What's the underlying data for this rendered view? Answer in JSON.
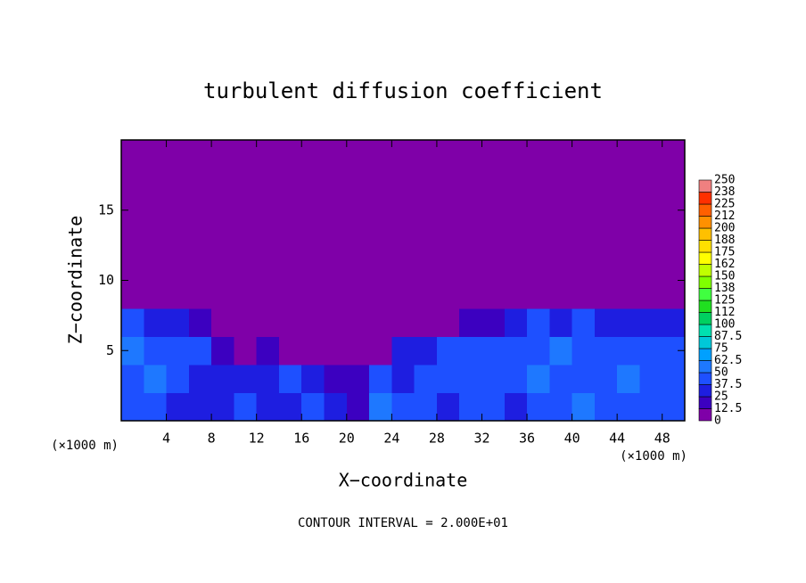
{
  "chart_data": {
    "type": "heatmap",
    "title": "turbulent diffusion coefficient",
    "xlabel": "X−coordinate",
    "ylabel": "Z−coordinate",
    "x_unit": "(×1000 m)",
    "y_unit": "(×1000 m)",
    "footer": "CONTOUR INTERVAL = 2.000E+01",
    "xlim": [
      0,
      50
    ],
    "ylim": [
      0,
      20
    ],
    "xticks": [
      4,
      8,
      12,
      16,
      20,
      24,
      28,
      32,
      36,
      40,
      44,
      48
    ],
    "yticks": [
      5,
      10,
      15
    ],
    "z": [
      [
        40,
        45,
        35,
        30,
        25,
        40,
        30,
        35,
        45,
        30,
        20,
        60,
        45,
        40,
        35,
        40,
        45,
        35,
        40,
        45,
        50,
        40,
        45,
        40,
        45
      ],
      [
        45,
        50,
        40,
        35,
        30,
        30,
        35,
        40,
        30,
        20,
        15,
        40,
        35,
        45,
        40,
        45,
        40,
        45,
        50,
        45,
        40,
        45,
        50,
        45,
        40
      ],
      [
        50,
        45,
        40,
        40,
        20,
        10,
        15,
        10,
        5,
        0,
        0,
        10,
        30,
        35,
        40,
        40,
        45,
        40,
        45,
        50,
        45,
        40,
        45,
        40,
        45
      ],
      [
        40,
        35,
        30,
        20,
        5,
        0,
        0,
        0,
        0,
        0,
        0,
        0,
        0,
        5,
        10,
        15,
        20,
        30,
        40,
        35,
        40,
        35,
        30,
        35,
        30
      ],
      [
        0,
        0,
        0,
        0,
        0,
        0,
        0,
        0,
        0,
        0,
        0,
        0,
        0,
        0,
        0,
        0,
        0,
        0,
        0,
        0,
        0,
        0,
        0,
        0,
        0
      ],
      [
        0,
        0,
        0,
        0,
        0,
        0,
        0,
        0,
        0,
        0,
        0,
        0,
        0,
        0,
        0,
        0,
        0,
        0,
        0,
        0,
        0,
        0,
        0,
        0,
        0
      ],
      [
        0,
        0,
        0,
        0,
        0,
        0,
        0,
        0,
        0,
        0,
        0,
        0,
        0,
        0,
        0,
        0,
        0,
        0,
        0,
        0,
        0,
        0,
        0,
        0,
        0
      ],
      [
        0,
        0,
        0,
        0,
        0,
        0,
        0,
        0,
        0,
        0,
        0,
        0,
        0,
        0,
        0,
        0,
        0,
        0,
        0,
        0,
        0,
        0,
        0,
        0,
        0
      ],
      [
        0,
        0,
        0,
        0,
        0,
        0,
        0,
        0,
        0,
        0,
        0,
        0,
        0,
        0,
        0,
        0,
        0,
        0,
        0,
        0,
        0,
        0,
        0,
        0,
        0
      ],
      [
        0,
        0,
        0,
        0,
        0,
        0,
        0,
        0,
        0,
        0,
        0,
        0,
        0,
        0,
        0,
        0,
        0,
        0,
        0,
        0,
        0,
        0,
        0,
        0,
        0
      ]
    ],
    "colorbar": {
      "levels": [
        0,
        12.5,
        25,
        37.5,
        50,
        62.5,
        75,
        87.5,
        100,
        {
          "value": 112.5,
          "label": "112"
        },
        125,
        {
          "value": 137.5,
          "label": "138"
        },
        150,
        {
          "value": 162.5,
          "label": "162"
        },
        175,
        {
          "value": 187.5,
          "label": "188"
        },
        200,
        {
          "value": 212.5,
          "label": "212"
        },
        225,
        {
          "value": 237.5,
          "label": "238"
        },
        250
      ],
      "colors": [
        "#7f00a8",
        "#3c00c0",
        "#1e1ee0",
        "#1e50ff",
        "#1e78ff",
        "#00a0ff",
        "#00c8d8",
        "#00e0b0",
        "#00d060",
        "#20e020",
        "#40ff40",
        "#80ff00",
        "#c0ff00",
        "#ffff00",
        "#ffe000",
        "#ffc000",
        "#ff9000",
        "#ff6000",
        "#ff3000",
        "#f08080"
      ]
    }
  }
}
